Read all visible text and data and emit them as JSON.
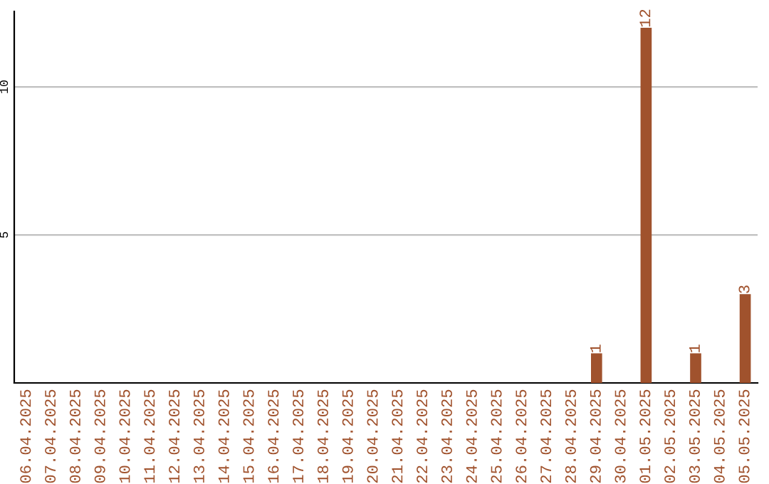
{
  "chart_data": {
    "type": "bar",
    "categories": [
      "06.04.2025",
      "07.04.2025",
      "08.04.2025",
      "09.04.2025",
      "10.04.2025",
      "11.04.2025",
      "12.04.2025",
      "13.04.2025",
      "14.04.2025",
      "15.04.2025",
      "16.04.2025",
      "17.04.2025",
      "18.04.2025",
      "19.04.2025",
      "20.04.2025",
      "21.04.2025",
      "22.04.2025",
      "23.04.2025",
      "24.04.2025",
      "25.04.2025",
      "26.04.2025",
      "27.04.2025",
      "28.04.2025",
      "29.04.2025",
      "30.04.2025",
      "01.05.2025",
      "02.05.2025",
      "03.05.2025",
      "04.05.2025",
      "05.05.2025"
    ],
    "values": [
      0,
      0,
      0,
      0,
      0,
      0,
      0,
      0,
      0,
      0,
      0,
      0,
      0,
      0,
      0,
      0,
      0,
      0,
      0,
      0,
      0,
      0,
      0,
      1,
      0,
      12,
      0,
      1,
      0,
      3
    ],
    "value_labels": [
      null,
      null,
      null,
      null,
      null,
      null,
      null,
      null,
      null,
      null,
      null,
      null,
      null,
      null,
      null,
      null,
      null,
      null,
      null,
      null,
      null,
      null,
      null,
      "1",
      null,
      "12",
      null,
      "1",
      null,
      "3"
    ],
    "color": "#a0522d",
    "ylim": [
      0,
      12.55
    ],
    "yticks": [
      5,
      10
    ],
    "grid": "y"
  }
}
